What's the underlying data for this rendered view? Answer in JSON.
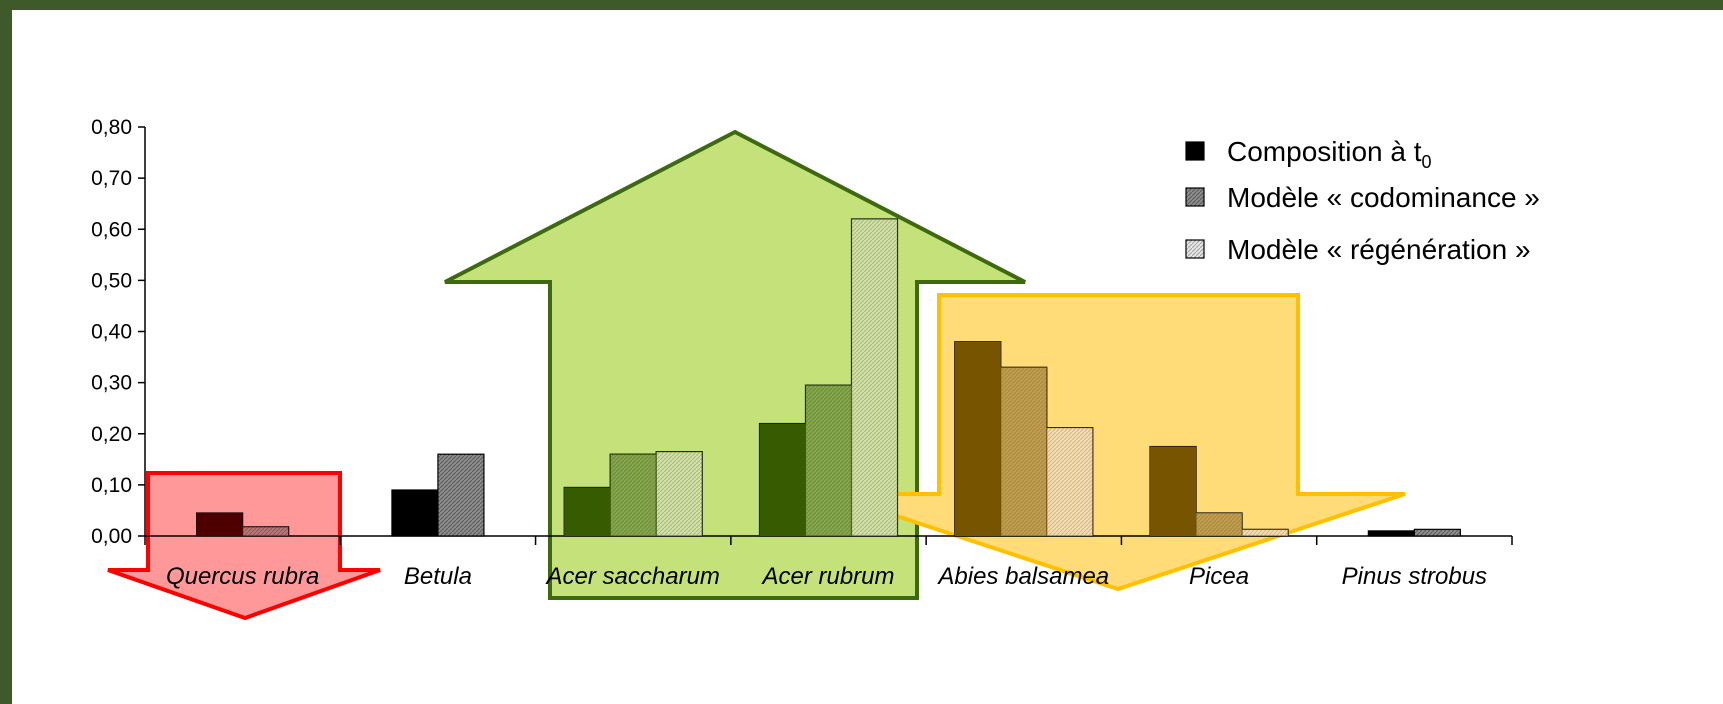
{
  "chart_data": {
    "type": "bar",
    "categories": [
      "Quercus rubra",
      "Betula",
      "Acer saccharum",
      "Acer rubrum",
      "Abies balsamea",
      "Picea",
      "Pinus strobus"
    ],
    "series": [
      {
        "name": "Composition à t",
        "name_sub": "0",
        "values": [
          0.045,
          0.09,
          0.095,
          0.22,
          0.38,
          0.175,
          0.01
        ]
      },
      {
        "name": "Modèle « codominance »",
        "values": [
          0.018,
          0.16,
          0.16,
          0.295,
          0.33,
          0.045,
          0.013
        ]
      },
      {
        "name": "Modèle « régénération »",
        "values": [
          null,
          null,
          0.165,
          0.62,
          0.212,
          0.013,
          null
        ]
      }
    ],
    "ylim": [
      0,
      0.8
    ],
    "yticks": [
      "0,00",
      "0,10",
      "0,20",
      "0,30",
      "0,40",
      "0,50",
      "0,60",
      "0,70",
      "0,80"
    ],
    "ytick_values": [
      0,
      0.1,
      0.2,
      0.3,
      0.4,
      0.5,
      0.6,
      0.7,
      0.8
    ],
    "legend_position": "top-right",
    "annotations": [
      {
        "kind": "arrow-down",
        "color": "#ff0000",
        "fill": "#ff9999",
        "categories": [
          "Quercus rubra"
        ]
      },
      {
        "kind": "arrow-up",
        "color": "#3c6a0d",
        "fill": "#c5e27a",
        "categories": [
          "Acer saccharum",
          "Acer rubrum"
        ]
      },
      {
        "kind": "arrow-down",
        "color": "#ffc000",
        "fill": "#ffdc78",
        "categories": [
          "Abies balsamea",
          "Picea"
        ]
      }
    ]
  },
  "colors": {
    "series_black": "#000000",
    "series_gray": "#8c8c8c",
    "series_light": "#d9d9d9"
  }
}
